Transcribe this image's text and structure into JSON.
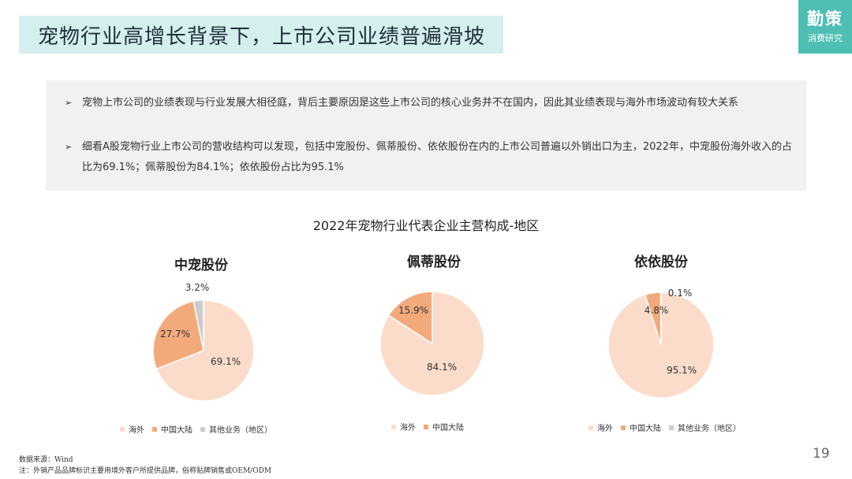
{
  "header": {
    "title": "宠物行业高增长背景下，上市公司业绩普遍滑坡"
  },
  "brand": {
    "name": "勤策",
    "subtitle": "消费研究"
  },
  "notes": [
    {
      "text": "宠物上市公司的业绩表现与行业发展大相径庭，背后主要原因是这些上市公司的核心业务并不在国内，因此其业绩表现与海外市场波动有较大关系"
    },
    {
      "text": "细看A股宠物行业上市公司的营收结构可以发现，包括中宠股份、佩蒂股份、依依股份在内的上市公司普遍以外销出口为主，2022年，中宠股份海外收入的占比为69.1%；佩蒂股份为84.1%；依依股份占比为95.1%"
    }
  ],
  "chart_title": "2022年宠物行业代表企业主营构成-地区",
  "colors": {
    "overseas": "#fbdccb",
    "mainland": "#f3aa7b",
    "other": "#cccccc"
  },
  "chart_data": [
    {
      "type": "pie",
      "title": "中宠股份",
      "slices": [
        {
          "name": "海外",
          "value": 69.1,
          "label": "69.1%"
        },
        {
          "name": "中国大陆",
          "value": 27.7,
          "label": "27.7%"
        },
        {
          "name": "其他业务（地区）",
          "value": 3.2,
          "label": "3.2%"
        }
      ],
      "legend": [
        "海外",
        "中国大陆",
        "其他业务（地区）"
      ]
    },
    {
      "type": "pie",
      "title": "佩蒂股份",
      "slices": [
        {
          "name": "海外",
          "value": 84.1,
          "label": "84.1%"
        },
        {
          "name": "中国大陆",
          "value": 15.9,
          "label": "15.9%"
        }
      ],
      "legend": [
        "海外",
        "中国大陆"
      ]
    },
    {
      "type": "pie",
      "title": "依依股份",
      "slices": [
        {
          "name": "海外",
          "value": 95.1,
          "label": "95.1%"
        },
        {
          "name": "中国大陆",
          "value": 4.8,
          "label": "4.8%"
        },
        {
          "name": "其他业务（地区）",
          "value": 0.1,
          "label": "0.1%"
        }
      ],
      "legend": [
        "海外",
        "中国大陆",
        "其他业务（地区）"
      ]
    }
  ],
  "footer": {
    "source": "数据来源：Wind",
    "note": "注：外销产品品牌标识主要用境外客户所提供品牌，俗称贴牌销售或OEM/ODM"
  },
  "page_number": "19"
}
